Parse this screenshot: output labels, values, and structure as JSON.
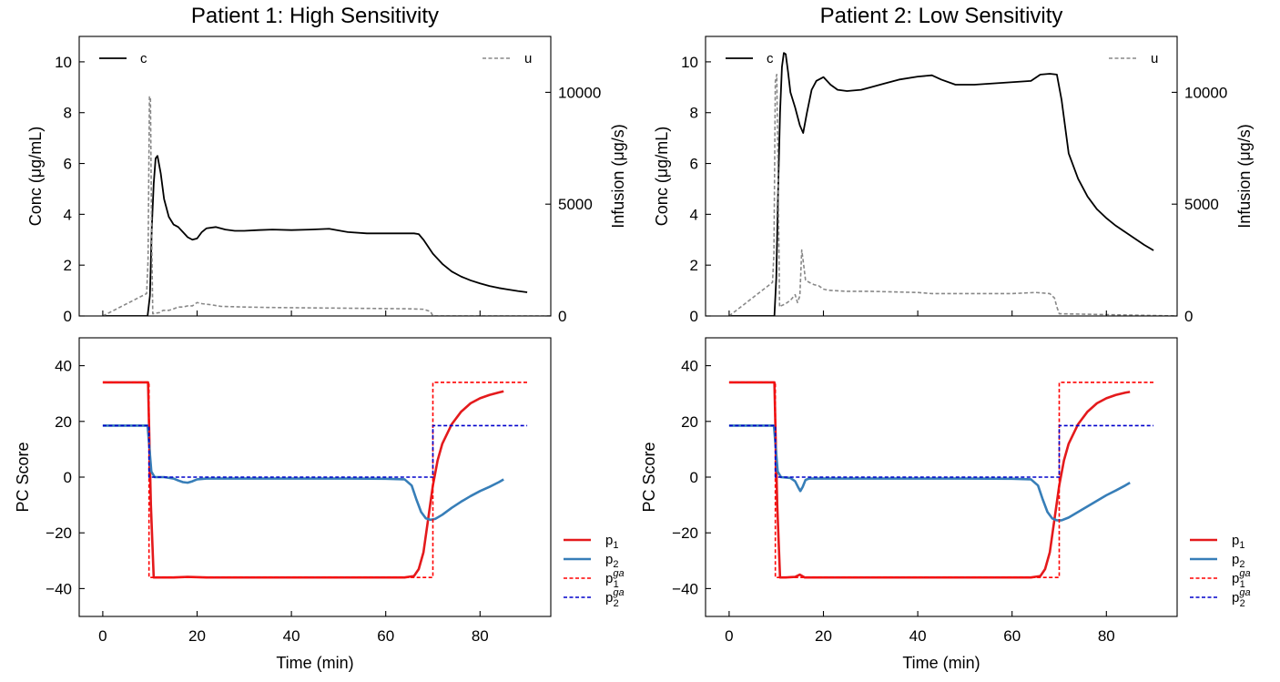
{
  "chart_data": [
    {
      "id": "p1-top",
      "type": "line",
      "title": "Patient 1: High Sensitivity",
      "xlabel": "",
      "ylabel": "Conc (μg/mL)",
      "y2label": "Infusion (μg/s)",
      "xlim": [
        -5,
        95
      ],
      "ylim": [
        0,
        11
      ],
      "y2lim": [
        0,
        12500
      ],
      "yticks": [
        0,
        2,
        4,
        6,
        8,
        10
      ],
      "y2ticks": [
        0,
        5000,
        10000
      ],
      "xticks": [
        0,
        20,
        40,
        60,
        80
      ],
      "legend": [
        {
          "label": "c",
          "position": "top-left"
        },
        {
          "label": "u",
          "position": "top-right"
        }
      ],
      "series": [
        {
          "name": "c",
          "axis": "left",
          "color": "#000000",
          "dash": "solid",
          "x": [
            0,
            9.5,
            10,
            10.4,
            10.8,
            11.2,
            11.6,
            12.3,
            13,
            14,
            15,
            16,
            17,
            18,
            19,
            20,
            21,
            22,
            24,
            26,
            28,
            30,
            33,
            36,
            40,
            44,
            48,
            52,
            56,
            60,
            64,
            66,
            67,
            68,
            70,
            72,
            74,
            76,
            78,
            80,
            82,
            84,
            86,
            88,
            90
          ],
          "y": [
            0,
            0,
            0.8,
            3.5,
            5.2,
            6.2,
            6.3,
            5.6,
            4.6,
            3.9,
            3.6,
            3.5,
            3.3,
            3.1,
            3.0,
            3.05,
            3.3,
            3.45,
            3.5,
            3.4,
            3.35,
            3.35,
            3.38,
            3.4,
            3.38,
            3.4,
            3.43,
            3.3,
            3.25,
            3.25,
            3.25,
            3.25,
            3.22,
            3.0,
            2.45,
            2.05,
            1.75,
            1.55,
            1.4,
            1.28,
            1.18,
            1.1,
            1.04,
            0.98,
            0.93
          ]
        },
        {
          "name": "u",
          "axis": "right",
          "color": "#888888",
          "dash": "dashed",
          "x": [
            0,
            9.3,
            9.6,
            9.9,
            10.1,
            10.4,
            10.6,
            12,
            12.8,
            14,
            14.8,
            16,
            17,
            18,
            19,
            20,
            21,
            23,
            25,
            30,
            35,
            40,
            45,
            50,
            55,
            60,
            65,
            68,
            69.5,
            70,
            95
          ],
          "y": [
            0,
            1000,
            2500,
            9800,
            9800,
            3000,
            100,
            150,
            250,
            250,
            300,
            400,
            400,
            450,
            450,
            600,
            550,
            500,
            430,
            400,
            380,
            370,
            360,
            350,
            340,
            330,
            320,
            300,
            200,
            0,
            0
          ]
        }
      ]
    },
    {
      "id": "p2-top",
      "type": "line",
      "title": "Patient 2: Low Sensitivity",
      "xlabel": "",
      "ylabel": "Conc (μg/mL)",
      "y2label": "Infusion (μg/s)",
      "xlim": [
        -5,
        95
      ],
      "ylim": [
        0,
        11
      ],
      "y2lim": [
        0,
        12500
      ],
      "yticks": [
        0,
        2,
        4,
        6,
        8,
        10
      ],
      "y2ticks": [
        0,
        5000,
        10000
      ],
      "xticks": [
        0,
        20,
        40,
        60,
        80
      ],
      "legend": [
        {
          "label": "c",
          "position": "top-left"
        },
        {
          "label": "u",
          "position": "top-right"
        }
      ],
      "series": [
        {
          "name": "c",
          "axis": "left",
          "color": "#000000",
          "dash": "solid",
          "x": [
            0,
            9.6,
            10,
            10.4,
            10.8,
            11.2,
            11.6,
            12,
            12.5,
            13,
            14,
            15,
            15.7,
            16.5,
            17.5,
            18.5,
            20,
            21.5,
            23,
            25,
            28,
            30,
            33,
            36,
            40,
            43,
            45,
            48,
            52,
            56,
            60,
            64,
            66,
            68,
            69.5,
            70.5,
            72,
            74,
            76,
            78,
            80,
            82,
            84,
            86,
            88,
            90
          ],
          "y": [
            0,
            0,
            1.5,
            5.0,
            8.0,
            9.8,
            10.35,
            10.3,
            9.6,
            8.8,
            8.2,
            7.5,
            7.2,
            8.0,
            8.9,
            9.25,
            9.4,
            9.1,
            8.9,
            8.85,
            8.9,
            9.0,
            9.15,
            9.3,
            9.42,
            9.47,
            9.3,
            9.1,
            9.1,
            9.15,
            9.2,
            9.25,
            9.5,
            9.53,
            9.5,
            8.5,
            6.4,
            5.4,
            4.7,
            4.2,
            3.85,
            3.55,
            3.3,
            3.05,
            2.8,
            2.58
          ]
        },
        {
          "name": "u",
          "axis": "right",
          "color": "#888888",
          "dash": "dashed",
          "x": [
            0,
            9.2,
            9.5,
            9.8,
            10.1,
            10.4,
            10.7,
            11.0,
            12,
            13,
            14,
            14.5,
            15,
            15.4,
            15.8,
            16.2,
            17,
            18,
            19,
            20,
            21,
            25,
            30,
            40,
            43,
            50,
            60,
            65,
            68,
            69,
            69.5,
            70,
            95
          ],
          "y": [
            0,
            1500,
            2800,
            10500,
            10800,
            6000,
            400,
            450,
            550,
            700,
            950,
            600,
            900,
            2950,
            2300,
            1600,
            1500,
            1400,
            1350,
            1200,
            1150,
            1100,
            1100,
            1050,
            1000,
            1000,
            1000,
            1050,
            1000,
            800,
            400,
            100,
            0
          ]
        }
      ]
    },
    {
      "id": "p1-bottom",
      "type": "line",
      "title": "",
      "xlabel": "Time (min)",
      "ylabel": "PC Score",
      "xlim": [
        -5,
        95
      ],
      "ylim": [
        -50,
        50
      ],
      "yticks": [
        -40,
        -20,
        0,
        20,
        40
      ],
      "xticks": [
        0,
        20,
        40,
        60,
        80
      ],
      "xtick_labels": [
        "0",
        "20",
        "40",
        "60",
        "80"
      ],
      "legend": [
        {
          "label": "p₁",
          "base": "p",
          "sub": "1",
          "sup": "",
          "color": "#e41a1c",
          "dash": "solid"
        },
        {
          "label": "p₂",
          "base": "p",
          "sub": "2",
          "sup": "",
          "color": "#377eb8",
          "dash": "solid"
        },
        {
          "label": "p₁ᵍᵃ",
          "base": "p",
          "sub": "1",
          "sup": "ga",
          "color": "#ff0000",
          "dash": "dashed"
        },
        {
          "label": "p₂ᵍᵃ",
          "base": "p",
          "sub": "2",
          "sup": "ga",
          "color": "#0000cc",
          "dash": "dashed"
        }
      ],
      "series": [
        {
          "name": "p1",
          "color": "#e41a1c",
          "dash": "solid",
          "width": 2.6,
          "x": [
            0,
            9.6,
            10.2,
            10.8,
            12,
            15,
            18,
            22,
            30,
            40,
            50,
            60,
            64,
            66,
            67,
            68,
            69,
            70,
            71,
            72,
            74,
            76,
            78,
            80,
            82,
            84,
            85
          ],
          "y": [
            34,
            34,
            -10,
            -36,
            -36,
            -36,
            -35.8,
            -36,
            -36,
            -36,
            -36,
            -36,
            -36,
            -35.5,
            -33,
            -27,
            -15,
            -3,
            6,
            12,
            19,
            23.5,
            26.5,
            28.3,
            29.5,
            30.4,
            30.8
          ]
        },
        {
          "name": "p2",
          "color": "#377eb8",
          "dash": "solid",
          "width": 2.6,
          "x": [
            0,
            9.5,
            10.3,
            11,
            13,
            15,
            16,
            17,
            18,
            19,
            20,
            22,
            30,
            40,
            50,
            60,
            64,
            65.5,
            66.5,
            67.5,
            68.5,
            69.5,
            70.5,
            72,
            74,
            76,
            78,
            80,
            82,
            84,
            85
          ],
          "y": [
            18.5,
            18.5,
            2,
            0,
            0,
            -0.5,
            -1.2,
            -1.8,
            -2,
            -1.5,
            -0.8,
            -0.5,
            -0.5,
            -0.5,
            -0.5,
            -0.6,
            -0.8,
            -3,
            -8,
            -12.5,
            -14.8,
            -15.3,
            -15,
            -13.5,
            -11,
            -8.8,
            -6.8,
            -5,
            -3.5,
            -1.8,
            -0.8
          ]
        },
        {
          "name": "p1_ga",
          "color": "#ff0000",
          "dash": "dashed",
          "width": 1.6,
          "x": [
            0,
            9.8,
            9.8,
            70,
            70,
            90
          ],
          "y": [
            34,
            34,
            -36,
            -36,
            34,
            34
          ]
        },
        {
          "name": "p2_ga",
          "color": "#0000cc",
          "dash": "dashed",
          "width": 1.6,
          "x": [
            0,
            9.8,
            9.8,
            70,
            70,
            90
          ],
          "y": [
            18.5,
            18.5,
            0,
            0,
            18.5,
            18.5
          ]
        }
      ]
    },
    {
      "id": "p2-bottom",
      "type": "line",
      "title": "",
      "xlabel": "Time (min)",
      "ylabel": "PC Score",
      "xlim": [
        -5,
        95
      ],
      "ylim": [
        -50,
        50
      ],
      "yticks": [
        -40,
        -20,
        0,
        20,
        40
      ],
      "xticks": [
        0,
        20,
        40,
        60,
        80
      ],
      "xtick_labels": [
        "0",
        "20",
        "40",
        "60",
        "80"
      ],
      "legend": [
        {
          "label": "p₁",
          "base": "p",
          "sub": "1",
          "sup": "",
          "color": "#e41a1c",
          "dash": "solid"
        },
        {
          "label": "p₂",
          "base": "p",
          "sub": "2",
          "sup": "",
          "color": "#377eb8",
          "dash": "solid"
        },
        {
          "label": "p₁ᵍᵃ",
          "base": "p",
          "sub": "1",
          "sup": "ga",
          "color": "#ff0000",
          "dash": "dashed"
        },
        {
          "label": "p₂ᵍᵃ",
          "base": "p",
          "sub": "2",
          "sup": "ga",
          "color": "#0000cc",
          "dash": "dashed"
        }
      ],
      "series": [
        {
          "name": "p1",
          "color": "#e41a1c",
          "dash": "solid",
          "width": 2.6,
          "x": [
            0,
            9.6,
            10.2,
            10.8,
            12,
            14,
            15,
            16,
            18,
            22,
            30,
            40,
            50,
            60,
            64,
            66,
            67,
            68,
            69,
            70,
            71,
            72,
            74,
            76,
            78,
            80,
            82,
            84,
            85
          ],
          "y": [
            34,
            34,
            -10,
            -36,
            -36,
            -35.8,
            -35,
            -36,
            -36,
            -36,
            -36,
            -36,
            -36,
            -36,
            -36,
            -35.5,
            -33,
            -27,
            -15,
            -3,
            6,
            12,
            19,
            23.5,
            26.5,
            28.3,
            29.5,
            30.3,
            30.6
          ]
        },
        {
          "name": "p2",
          "color": "#377eb8",
          "dash": "solid",
          "width": 2.6,
          "x": [
            0,
            9.5,
            10.3,
            11,
            13,
            14,
            14.6,
            15.1,
            15.6,
            16.2,
            17,
            20,
            30,
            40,
            50,
            60,
            64,
            65.5,
            66.5,
            67.5,
            68.5,
            69.5,
            70.5,
            72,
            74,
            76,
            78,
            80,
            82,
            84,
            85
          ],
          "y": [
            18.5,
            18.5,
            2,
            0,
            -0.3,
            -1.5,
            -3.5,
            -5,
            -3.5,
            -1,
            -0.5,
            -0.5,
            -0.5,
            -0.5,
            -0.5,
            -0.6,
            -0.8,
            -3,
            -8,
            -12.5,
            -14.8,
            -15.5,
            -15.5,
            -14.5,
            -12.5,
            -10.5,
            -8.5,
            -6.5,
            -4.8,
            -3,
            -2
          ]
        },
        {
          "name": "p1_ga",
          "color": "#ff0000",
          "dash": "dashed",
          "width": 1.6,
          "x": [
            0,
            9.8,
            9.8,
            70,
            70,
            90
          ],
          "y": [
            34,
            34,
            -36,
            -36,
            34,
            34
          ]
        },
        {
          "name": "p2_ga",
          "color": "#0000cc",
          "dash": "dashed",
          "width": 1.6,
          "x": [
            0,
            9.8,
            9.8,
            70,
            70,
            90
          ],
          "y": [
            18.5,
            18.5,
            0,
            0,
            18.5,
            18.5
          ]
        }
      ]
    }
  ]
}
